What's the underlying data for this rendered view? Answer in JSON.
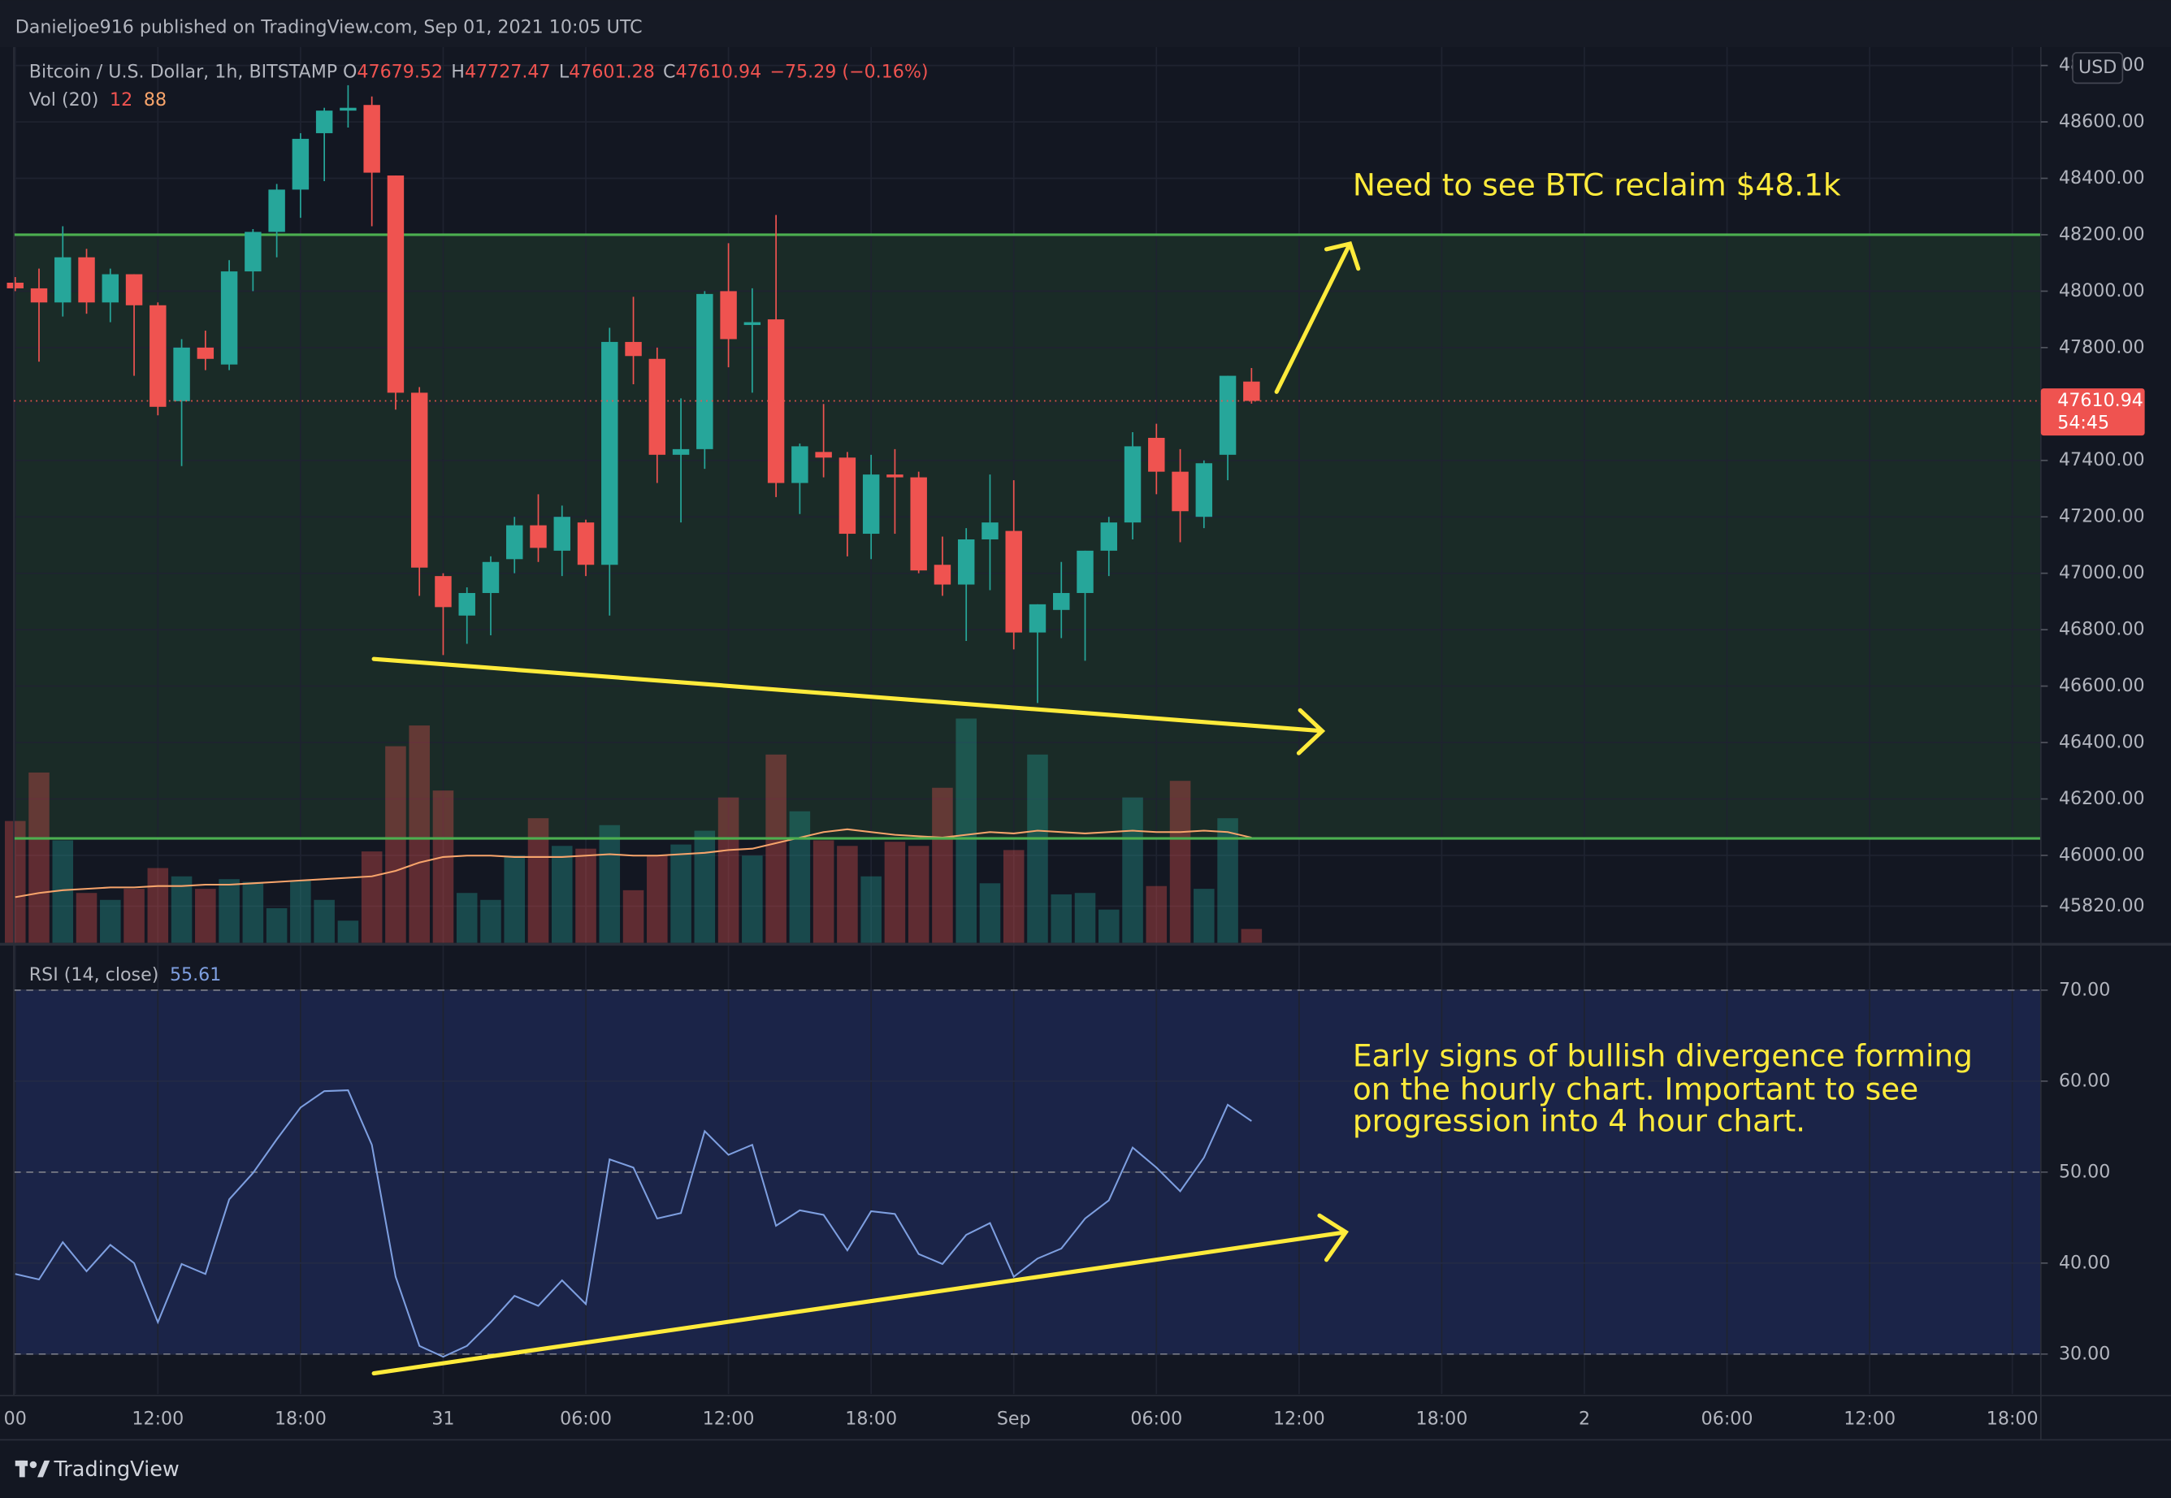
{
  "header": {
    "text": "Danieljoe916 published on TradingView.com, Sep 01, 2021 10:05 UTC"
  },
  "footer": {
    "brand": "TradingView"
  },
  "chart_data": {
    "type": "candlestick",
    "legend": {
      "symbol": "Bitcoin / U.S. Dollar, 1h, BITSTAMP",
      "letters": [
        "O",
        "H",
        "L",
        "C"
      ],
      "change": "−75.29 (−0.16%)"
    },
    "volume_legend": {
      "label": "Vol (20)",
      "values": [
        "12",
        "88"
      ]
    },
    "currency": "USD",
    "countdown": "54:45",
    "x": [
      0,
      1,
      2,
      3,
      4,
      5,
      6,
      7,
      8,
      9,
      10,
      11,
      12,
      13,
      14,
      15,
      16,
      17,
      18,
      19,
      20,
      21,
      22,
      23,
      24,
      25,
      26,
      27,
      28,
      29,
      30,
      31,
      32,
      33,
      34,
      35,
      36,
      37,
      38,
      39,
      40,
      41,
      42,
      43,
      44,
      45,
      46,
      47,
      48,
      49,
      50,
      51,
      52
    ],
    "open": [
      48030,
      48010,
      47960,
      48120,
      47960,
      48060,
      47950,
      47610,
      47800,
      47740,
      48070,
      48210,
      48360,
      48560,
      48640,
      48660,
      48410,
      47640,
      46990,
      46850,
      46930,
      47050,
      47170,
      47080,
      47180,
      47030,
      47820,
      47760,
      47420,
      47440,
      48000,
      47880,
      47900,
      47320,
      47430,
      47410,
      47140,
      47350,
      47340,
      47030,
      46960,
      47120,
      47150,
      46790,
      46870,
      46930,
      47080,
      47180,
      47480,
      47360,
      47200,
      47420,
      47679.52
    ],
    "high": [
      48050,
      48080,
      48230,
      48150,
      48080,
      48060,
      47960,
      47830,
      47860,
      48110,
      48220,
      48380,
      48560,
      48650,
      48730,
      48690,
      48410,
      47660,
      47000,
      46950,
      47060,
      47200,
      47280,
      47240,
      47190,
      47870,
      47980,
      47800,
      47620,
      48000,
      48170,
      48010,
      48270,
      47460,
      47600,
      47430,
      47420,
      47440,
      47360,
      47130,
      47160,
      47350,
      47330,
      46890,
      47040,
      47080,
      47200,
      47500,
      47530,
      47440,
      47400,
      47700,
      47727.47
    ],
    "low": [
      48000,
      47750,
      47910,
      47920,
      47890,
      47700,
      47560,
      47380,
      47720,
      47720,
      48000,
      48120,
      48260,
      48390,
      48580,
      48230,
      47580,
      46920,
      46710,
      46750,
      46780,
      47000,
      47040,
      46990,
      46990,
      46850,
      47670,
      47320,
      47180,
      47370,
      47730,
      47640,
      47270,
      47210,
      47340,
      47060,
      47050,
      47140,
      47000,
      46920,
      46760,
      46940,
      46730,
      46540,
      46770,
      46690,
      46990,
      47120,
      47280,
      47110,
      47160,
      47330,
      47601.28
    ],
    "close": [
      48010,
      47960,
      48120,
      47960,
      48060,
      47950,
      47590,
      47800,
      47760,
      48070,
      48210,
      48360,
      48540,
      48640,
      48650,
      48420,
      47640,
      47020,
      46880,
      46930,
      47040,
      47170,
      47090,
      47200,
      47030,
      47820,
      47770,
      47420,
      47440,
      47990,
      47830,
      47890,
      47320,
      47450,
      47410,
      47140,
      47350,
      47340,
      47010,
      46960,
      47120,
      47180,
      46790,
      46890,
      46930,
      47080,
      47180,
      47450,
      47360,
      47220,
      47390,
      47700,
      47610.94
    ],
    "volume": [
      88,
      123,
      74,
      36,
      31,
      39,
      54,
      48,
      39,
      46,
      44,
      25,
      45,
      31,
      16,
      66,
      142,
      157,
      110,
      36,
      31,
      63,
      90,
      70,
      68,
      85,
      38,
      63,
      71,
      81,
      105,
      63,
      136,
      95,
      74,
      70,
      48,
      73,
      70,
      112,
      162,
      43,
      67,
      136,
      35,
      36,
      24,
      105,
      41,
      117,
      39,
      90,
      10
    ],
    "volume_ma": [
      33,
      36,
      38,
      39,
      40,
      40,
      41,
      41,
      42,
      42,
      43,
      44,
      45,
      46,
      47,
      48,
      52,
      58,
      62,
      63,
      63,
      62,
      62,
      62,
      63,
      64,
      63,
      63,
      64,
      65,
      67,
      68,
      72,
      76,
      80,
      82,
      80,
      78,
      77,
      76,
      78,
      80,
      79,
      81,
      80,
      79,
      80,
      81,
      80,
      80,
      81,
      80,
      76
    ],
    "volume_ylim": [
      0,
      647
    ],
    "up_color": "#26a69a",
    "down_color": "#ef5350",
    "volume_ma_color": "#f7a46b",
    "levels": [
      48200,
      46060
    ],
    "level_color": "#4caf50",
    "xlim": [
      0,
      85.2
    ],
    "xticks": [
      {
        "value": 0,
        "label": "00"
      },
      {
        "value": 6,
        "label": "12:00"
      },
      {
        "value": 12,
        "label": "18:00"
      },
      {
        "value": 18,
        "label": "31"
      },
      {
        "value": 24,
        "label": "06:00"
      },
      {
        "value": 30,
        "label": "12:00"
      },
      {
        "value": 36,
        "label": "18:00"
      },
      {
        "value": 42,
        "label": "Sep"
      },
      {
        "value": 48,
        "label": "06:00"
      },
      {
        "value": 54,
        "label": "12:00"
      },
      {
        "value": 60,
        "label": "18:00"
      },
      {
        "value": 66,
        "label": "2"
      },
      {
        "value": 72,
        "label": "06:00"
      },
      {
        "value": 78,
        "label": "12:00"
      },
      {
        "value": 84,
        "label": "18:00"
      }
    ],
    "ylim": [
      45690,
      48865
    ],
    "yticks": [
      {
        "value": 45820,
        "label": "45820.00"
      },
      {
        "value": 46000,
        "label": "46000.00"
      },
      {
        "value": 46200,
        "label": "46200.00"
      },
      {
        "value": 46400,
        "label": "46400.00"
      },
      {
        "value": 46600,
        "label": "46600.00"
      },
      {
        "value": 46800,
        "label": "46800.00"
      },
      {
        "value": 47000,
        "label": "47000.00"
      },
      {
        "value": 47200,
        "label": "47200.00"
      },
      {
        "value": 47400,
        "label": "47400.00"
      },
      {
        "value": 47600,
        "label": "47600.00"
      },
      {
        "value": 47800,
        "label": "47800.00"
      },
      {
        "value": 48000,
        "label": "48000.00"
      },
      {
        "value": 48200,
        "label": "48200.00"
      },
      {
        "value": 48400,
        "label": "48400.00"
      },
      {
        "value": 48600,
        "label": "48600.00"
      },
      {
        "value": 48800,
        "label": "48800.00"
      }
    ],
    "grid": true,
    "annotation": "Need to see BTC reclaim $48.1k",
    "rsi": {
      "label": "RSI (14, close)",
      "color": "#7e9fe0",
      "values": [
        38.8,
        38.2,
        42.3,
        39.1,
        42.0,
        40.0,
        33.5,
        39.9,
        38.8,
        47.0,
        49.9,
        53.6,
        57.1,
        58.9,
        59.0,
        53.0,
        38.5,
        30.9,
        29.7,
        30.9,
        33.5,
        36.4,
        35.3,
        38.1,
        35.5,
        51.4,
        50.5,
        44.9,
        45.5,
        54.5,
        51.9,
        53.0,
        44.1,
        45.8,
        45.3,
        41.4,
        45.7,
        45.4,
        41.0,
        39.9,
        43.1,
        44.4,
        38.5,
        40.5,
        41.6,
        44.9,
        46.9,
        52.7,
        50.5,
        47.9,
        51.6,
        57.4,
        55.61
      ],
      "ylim": [
        25.6,
        74.9
      ],
      "yticks": [
        {
          "value": 30,
          "label": "30.00"
        },
        {
          "value": 40,
          "label": "40.00"
        },
        {
          "value": 50,
          "label": "50.00"
        },
        {
          "value": 60,
          "label": "60.00"
        },
        {
          "value": 70,
          "label": "70.00"
        }
      ],
      "levels": [
        70,
        50,
        30
      ],
      "annotation": [
        "Early signs of bullish divergence forming",
        "on the hourly chart. Important to see",
        "progression into 4 hour chart."
      ]
    }
  }
}
